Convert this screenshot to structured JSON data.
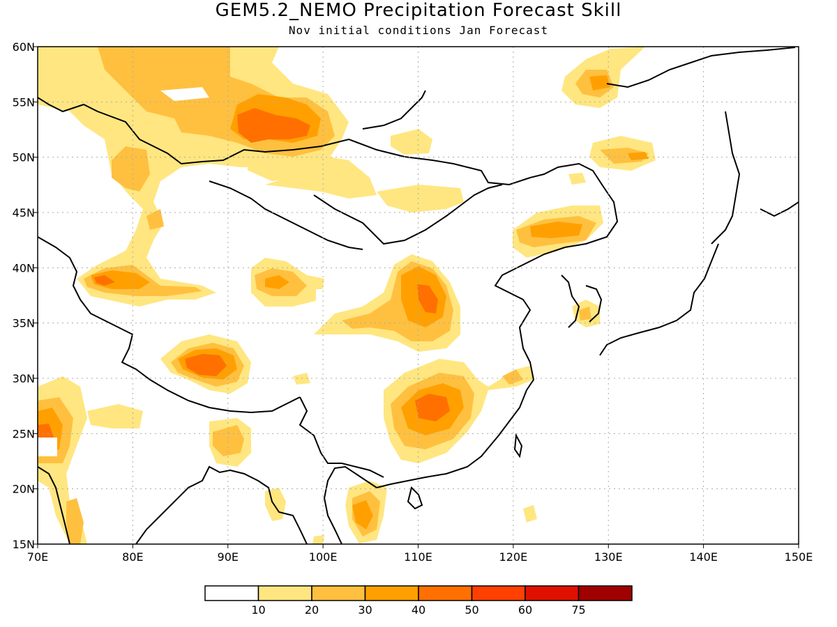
{
  "title": "GEM5.2_NEMO Precipitation Forecast Skill",
  "subtitle": "Nov initial conditions  Jan Forecast",
  "map": {
    "lon_range": [
      70,
      150
    ],
    "lat_range": [
      15,
      60
    ],
    "lon_ticks": [
      "70E",
      "80E",
      "90E",
      "100E",
      "110E",
      "120E",
      "130E",
      "140E",
      "150E"
    ],
    "lat_ticks": [
      "15N",
      "20N",
      "25N",
      "30N",
      "35N",
      "40N",
      "45N",
      "50N",
      "55N",
      "60N"
    ],
    "grid": "dotted"
  },
  "colorbar": {
    "labels": [
      "10",
      "20",
      "30",
      "40",
      "50",
      "60",
      "75"
    ],
    "colors": [
      "#ffffff",
      "#ffe680",
      "#ffc040",
      "#ffa000",
      "#ff7000",
      "#ff4000",
      "#e01000",
      "#a00000"
    ]
  },
  "chart_data": {
    "type": "heatmap",
    "title": "GEM5.2_NEMO Precipitation Forecast Skill",
    "subtitle": "Nov initial conditions  Jan Forecast",
    "x_range": [
      70,
      150
    ],
    "y_range": [
      15,
      60
    ],
    "levels": [
      10,
      20,
      30,
      40,
      50,
      60,
      75
    ],
    "hotspots": [
      {
        "lon": 93,
        "lat": 52,
        "max_level": 50
      },
      {
        "lon": 77,
        "lat": 39,
        "max_level": 50
      },
      {
        "lon": 88,
        "lat": 31,
        "max_level": 50
      },
      {
        "lon": 112,
        "lat": 37,
        "max_level": 50
      },
      {
        "lon": 111,
        "lat": 27,
        "max_level": 50
      },
      {
        "lon": 125,
        "lat": 43,
        "max_level": 30
      },
      {
        "lon": 128,
        "lat": 56,
        "max_level": 30
      },
      {
        "lon": 71,
        "lat": 24,
        "max_level": 50
      },
      {
        "lon": 104,
        "lat": 17,
        "max_level": 40
      }
    ]
  }
}
